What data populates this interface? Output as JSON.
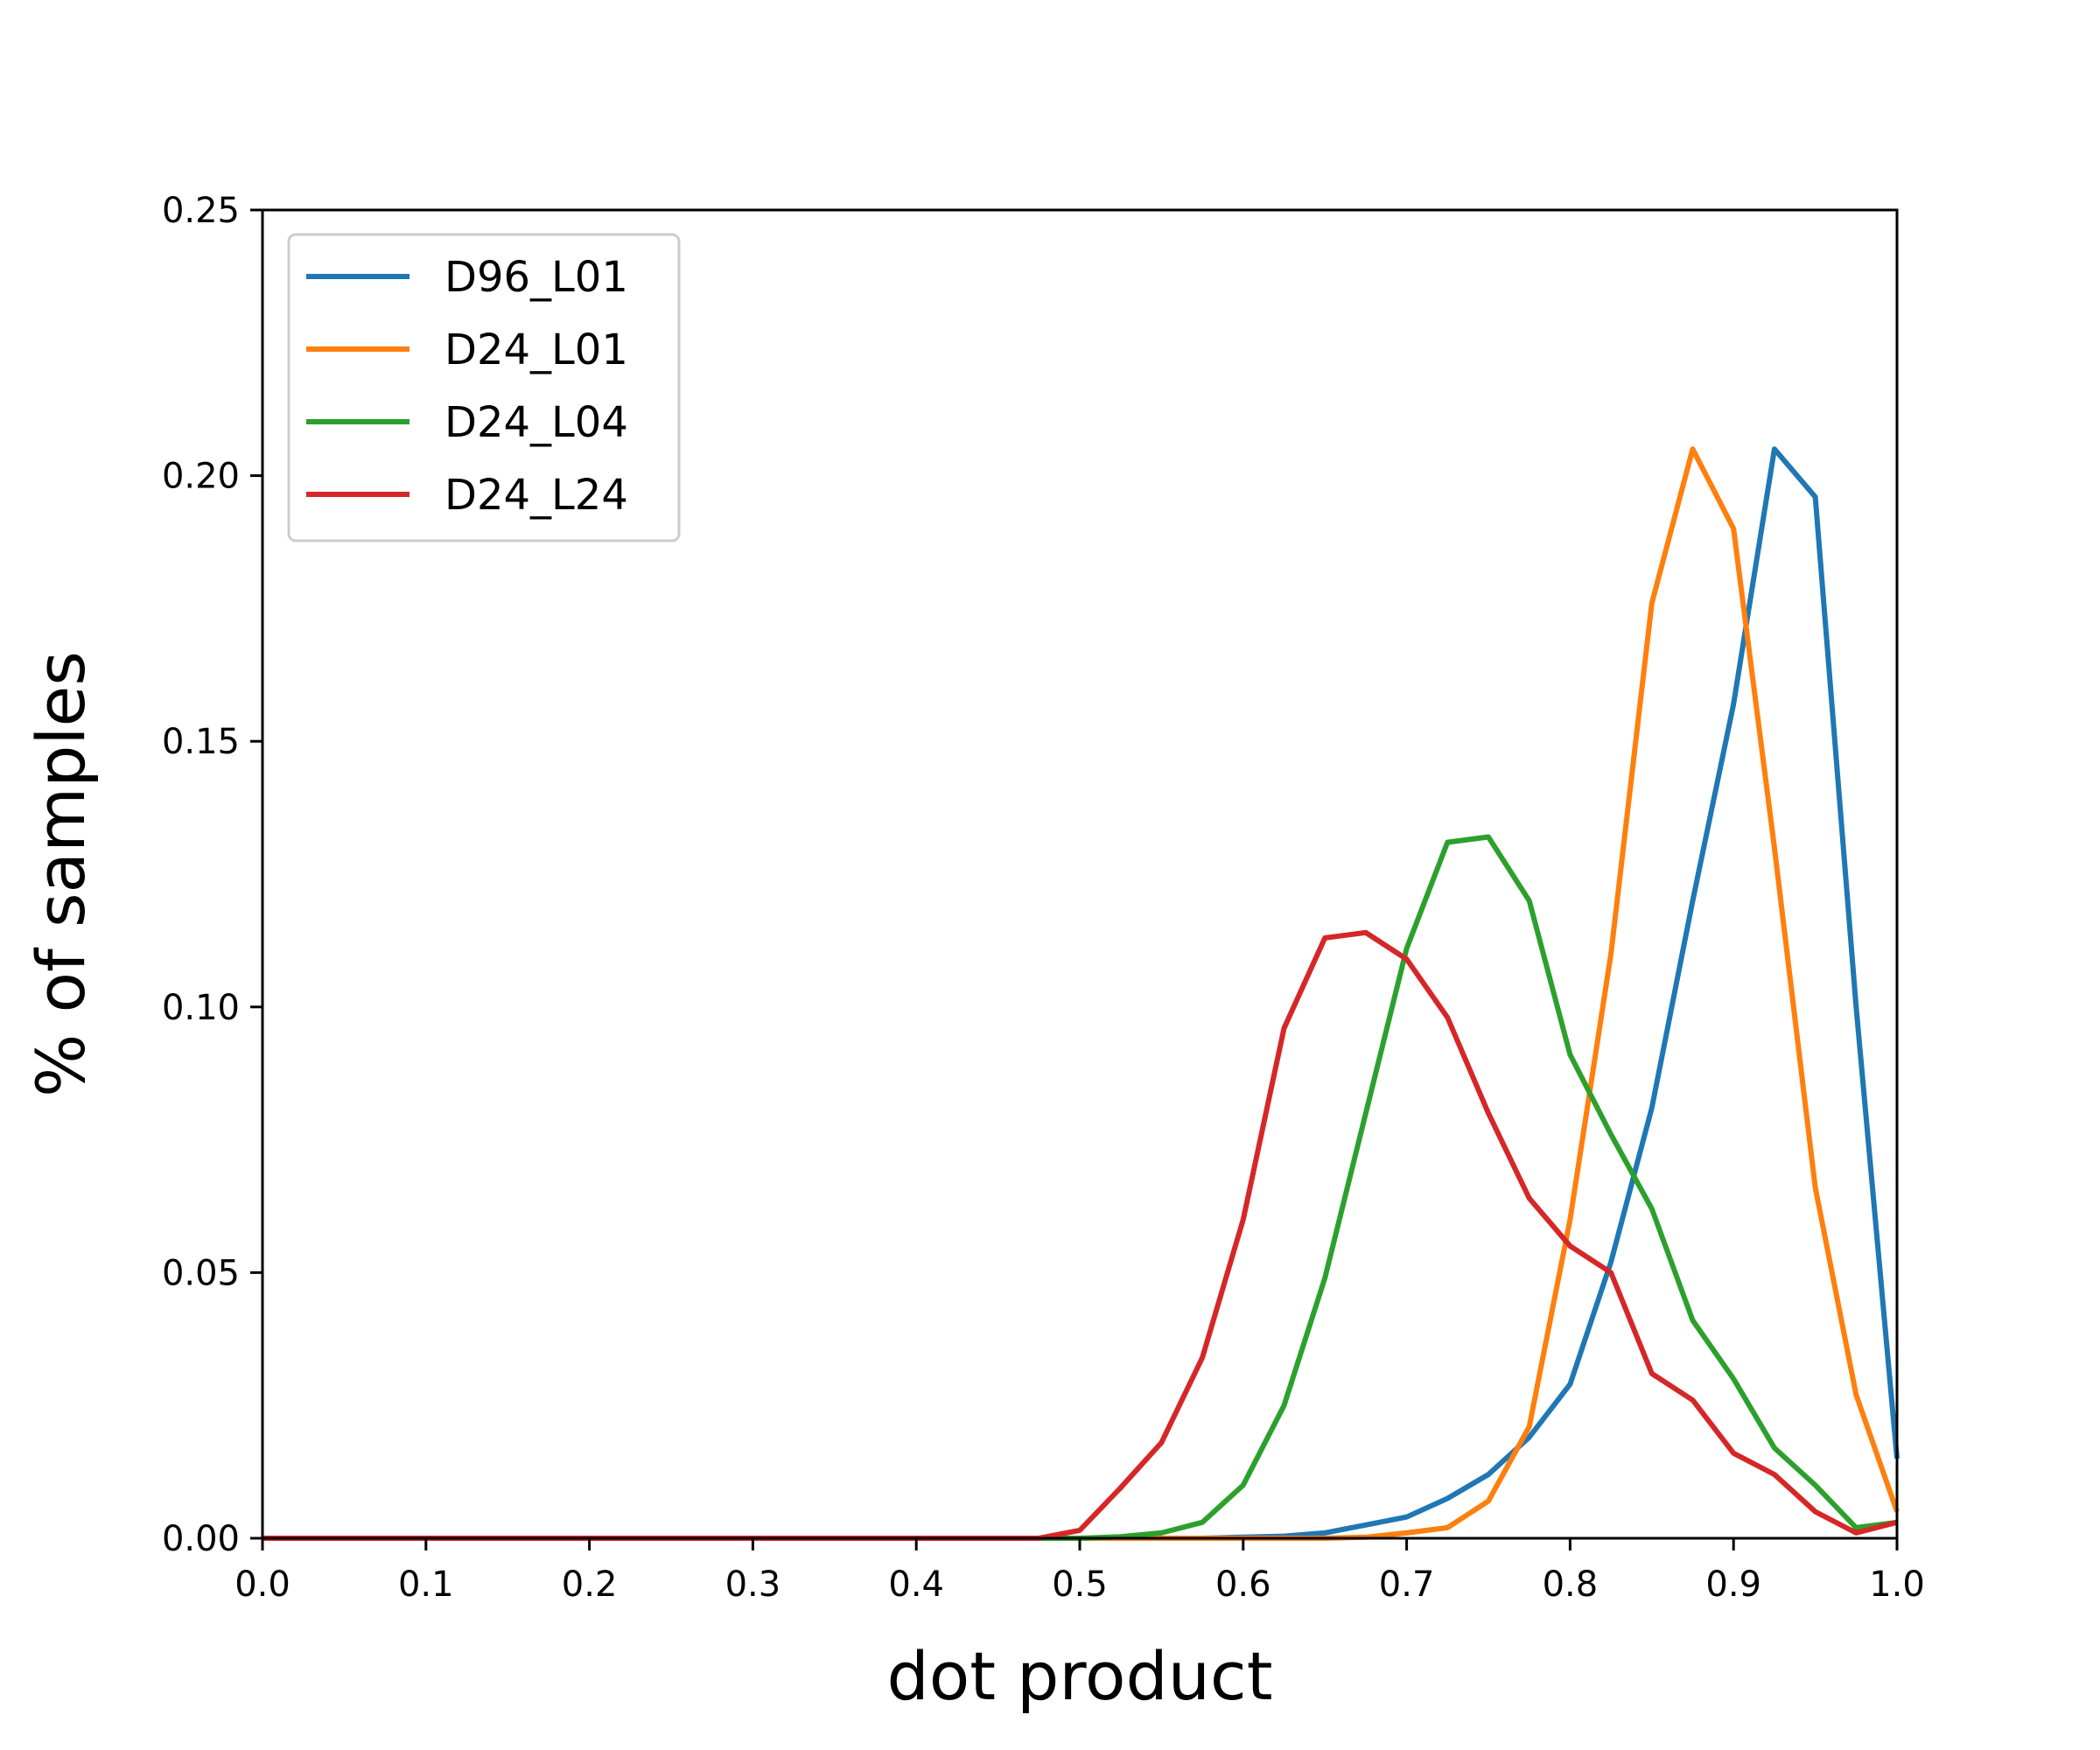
{
  "chart_data": {
    "type": "line",
    "title": "",
    "xlabel": "dot product",
    "ylabel": "% of samples",
    "xlim": [
      0.0,
      1.0
    ],
    "ylim": [
      0.0,
      0.25
    ],
    "x_ticks": [
      "0.0",
      "0.1",
      "0.2",
      "0.3",
      "0.4",
      "0.5",
      "0.6",
      "0.7",
      "0.8",
      "0.9",
      "1.0"
    ],
    "y_ticks": [
      "0.00",
      "0.05",
      "0.10",
      "0.15",
      "0.20",
      "0.25"
    ],
    "grid": false,
    "legend_position": "top-left",
    "x": [
      0.0,
      0.025,
      0.05,
      0.075,
      0.1,
      0.125,
      0.15,
      0.175,
      0.2,
      0.225,
      0.25,
      0.275,
      0.3,
      0.325,
      0.35,
      0.375,
      0.4,
      0.425,
      0.45,
      0.475,
      0.5,
      0.525,
      0.55,
      0.575,
      0.6,
      0.625,
      0.65,
      0.675,
      0.7,
      0.725,
      0.75,
      0.775,
      0.8,
      0.825,
      0.85,
      0.875,
      0.9,
      0.925,
      0.95,
      0.975,
      1.0
    ],
    "series": [
      {
        "name": "D96_L01",
        "color": "#1f77b4",
        "values": [
          0,
          0,
          0,
          0,
          0,
          0,
          0,
          0,
          0,
          0,
          0,
          0,
          0,
          0,
          0,
          0,
          0,
          0,
          0,
          0,
          0,
          0,
          0,
          0,
          0.0002,
          0.0004,
          0.001,
          0.0025,
          0.004,
          0.0075,
          0.012,
          0.019,
          0.029,
          0.052,
          0.081,
          0.12,
          0.157,
          0.205,
          0.196,
          0.1,
          0.015
        ]
      },
      {
        "name": "D24_L01",
        "color": "#ff7f0e",
        "values": [
          0,
          0,
          0,
          0,
          0,
          0,
          0,
          0,
          0,
          0,
          0,
          0,
          0,
          0,
          0,
          0,
          0,
          0,
          0,
          0,
          0,
          0,
          0,
          0,
          0,
          0,
          0,
          0.0002,
          0.001,
          0.002,
          0.007,
          0.021,
          0.06,
          0.11,
          0.176,
          0.205,
          0.19,
          0.13,
          0.066,
          0.027,
          0.005
        ]
      },
      {
        "name": "D24_L04",
        "color": "#2ca02c",
        "values": [
          0,
          0,
          0,
          0,
          0,
          0,
          0,
          0,
          0,
          0,
          0,
          0,
          0,
          0,
          0,
          0,
          0,
          0,
          0,
          0,
          0,
          0.0003,
          0.001,
          0.003,
          0.01,
          0.025,
          0.049,
          0.08,
          0.111,
          0.131,
          0.132,
          0.12,
          0.091,
          0.076,
          0.062,
          0.041,
          0.03,
          0.017,
          0.01,
          0.002,
          0.003
        ]
      },
      {
        "name": "D24_L24",
        "color": "#d62728",
        "values": [
          0,
          0,
          0,
          0,
          0,
          0,
          0,
          0,
          0,
          0,
          0,
          0,
          0,
          0,
          0,
          0,
          0,
          0,
          0,
          0,
          0.0015,
          0.0095,
          0.018,
          0.034,
          0.06,
          0.096,
          0.113,
          0.114,
          0.109,
          0.098,
          0.08,
          0.064,
          0.055,
          0.05,
          0.031,
          0.026,
          0.016,
          0.012,
          0.005,
          0.001,
          0.003
        ]
      }
    ]
  }
}
